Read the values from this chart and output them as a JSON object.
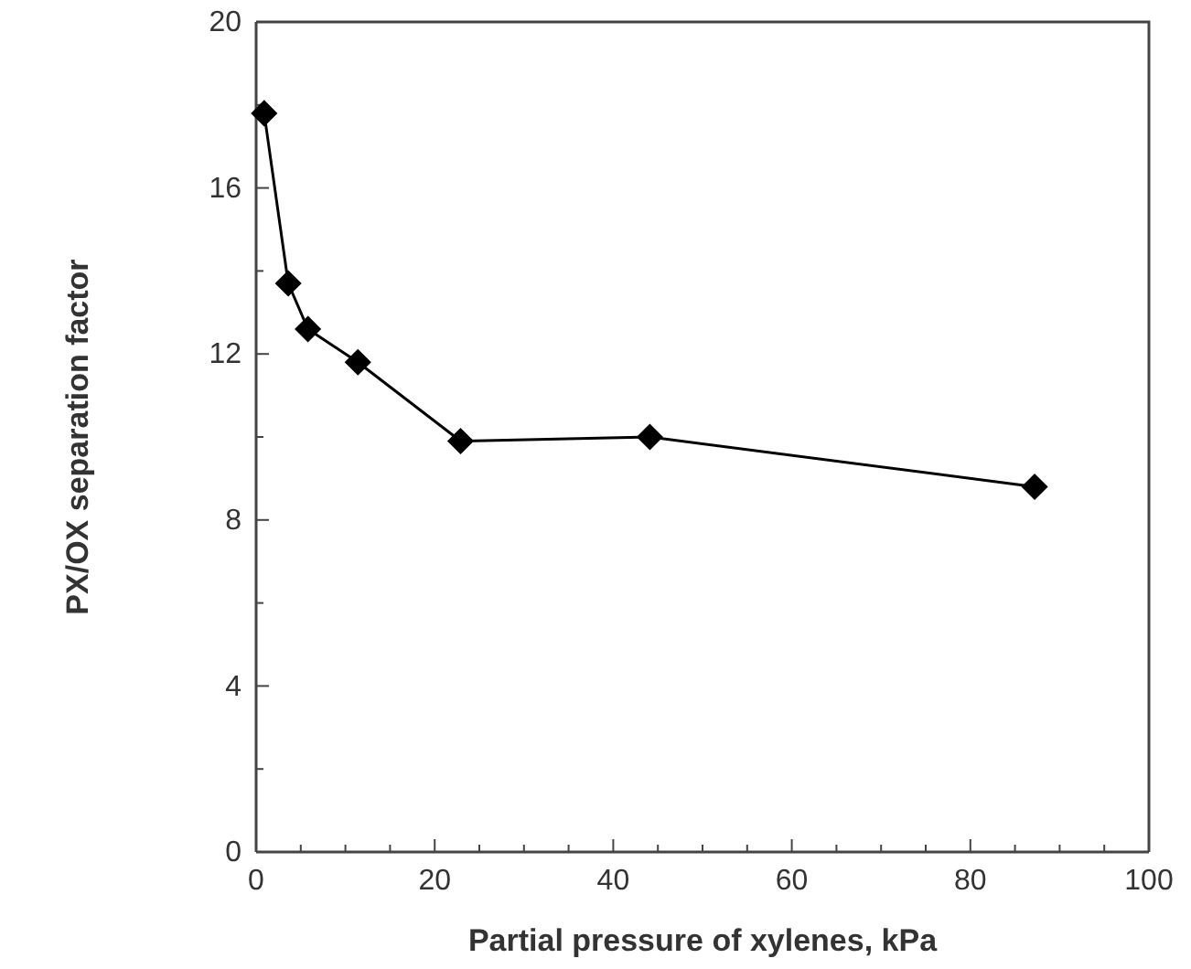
{
  "chart_data": {
    "type": "line",
    "xlabel": "Partial pressure of xylenes, kPa",
    "ylabel": "PX/OX separation factor",
    "x": [
      0.9,
      3.6,
      5.8,
      11.4,
      22.9,
      44.1,
      87.2
    ],
    "series": [
      {
        "color": "#000000",
        "values": [
          17.8,
          13.7,
          12.6,
          11.8,
          9.9,
          10.0,
          8.8
        ]
      }
    ],
    "xlim": [
      0,
      100
    ],
    "ylim": [
      0,
      20
    ],
    "xticks": [
      0,
      {
        "value": 5,
        "label": null
      },
      {
        "value": 10,
        "label": null
      },
      {
        "value": 15,
        "label": null
      },
      20,
      {
        "value": 25,
        "label": null
      },
      {
        "value": 30,
        "label": null
      },
      {
        "value": 35,
        "label": null
      },
      40,
      {
        "value": 45,
        "label": null
      },
      {
        "value": 50,
        "label": null
      },
      {
        "value": 55,
        "label": null
      },
      60,
      {
        "value": 65,
        "label": null
      },
      {
        "value": 70,
        "label": null
      },
      {
        "value": 75,
        "label": null
      },
      80,
      {
        "value": 85,
        "label": null
      },
      {
        "value": 90,
        "label": null
      },
      {
        "value": 95,
        "label": null
      },
      100
    ],
    "yticks": [
      0,
      {
        "value": 2,
        "label": null
      },
      4,
      {
        "value": 6,
        "label": null
      },
      8,
      {
        "value": 10,
        "label": null
      },
      12,
      {
        "value": 14,
        "label": null
      },
      16,
      {
        "value": 18,
        "label": null
      },
      20
    ],
    "marker": "diamond",
    "line_style": "solid",
    "grid": false
  }
}
